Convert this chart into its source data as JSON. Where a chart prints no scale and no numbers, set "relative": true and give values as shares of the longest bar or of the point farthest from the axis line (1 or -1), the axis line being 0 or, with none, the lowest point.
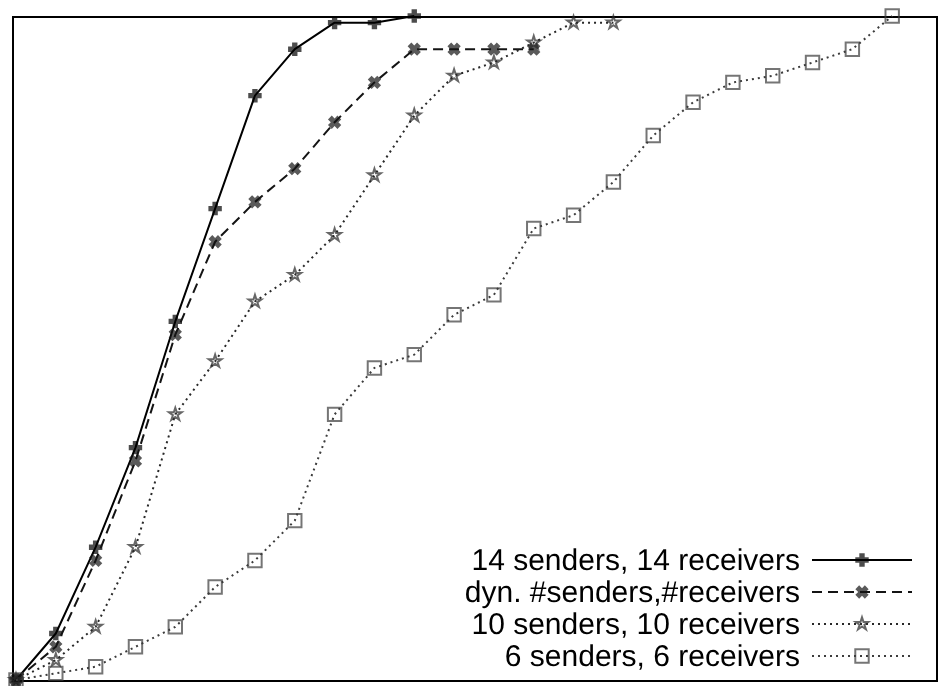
{
  "chart_data": {
    "type": "line",
    "relative": true,
    "grid": false,
    "legend": "bottom right",
    "categories": [
      null,
      null,
      null,
      null,
      null,
      null,
      null,
      null,
      null,
      null,
      null,
      null,
      null,
      null,
      null,
      null,
      null,
      null,
      null,
      null,
      null,
      null,
      null,
      null
    ],
    "series": [
      {
        "name": "14 senders, 14 receivers",
        "color": "#000000",
        "marker": "cross",
        "line_style": "solid",
        "values": [
          0.0,
          0.07,
          0.2,
          0.35,
          0.54,
          0.71,
          0.88,
          0.95,
          0.99,
          0.99,
          1.0,
          null,
          null,
          null,
          null,
          null,
          null,
          null,
          null,
          null,
          null,
          null,
          null,
          null
        ]
      },
      {
        "name": "dyn. #senders,#receivers",
        "color": "#141414",
        "marker": "cross",
        "line_style": "dashed",
        "values": [
          0.0,
          0.05,
          0.18,
          0.33,
          0.52,
          0.66,
          0.72,
          0.77,
          0.84,
          0.9,
          0.95,
          0.95,
          0.95,
          0.95,
          null,
          null,
          null,
          null,
          null,
          null,
          null,
          null,
          null,
          null
        ]
      },
      {
        "name": "10 senders, 10 receivers",
        "color": "#282828",
        "marker": "star",
        "line_style": "dotted",
        "values": [
          0.0,
          0.03,
          0.08,
          0.2,
          0.4,
          0.48,
          0.57,
          0.61,
          0.67,
          0.76,
          0.85,
          0.91,
          0.93,
          0.96,
          0.99,
          0.99,
          null,
          null,
          null,
          null,
          null,
          null,
          null,
          null
        ]
      },
      {
        "name": "6 senders, 6 receivers",
        "color": "#3c3c3c",
        "marker": "square",
        "line_style": "dotted",
        "values": [
          0.0,
          0.01,
          0.02,
          0.05,
          0.08,
          0.14,
          0.18,
          0.24,
          0.4,
          0.47,
          0.49,
          0.55,
          0.58,
          0.68,
          0.7,
          0.75,
          0.82,
          0.87,
          0.9,
          0.91,
          0.93,
          0.95,
          1.0,
          null
        ]
      }
    ]
  }
}
